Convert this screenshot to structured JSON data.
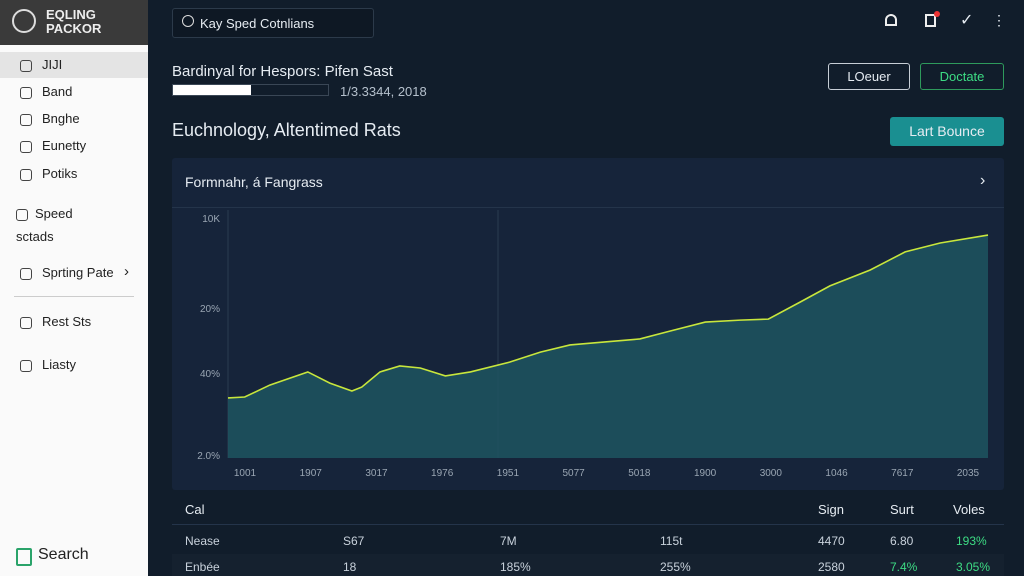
{
  "app": {
    "logo": [
      "EQLING",
      "PACKOR"
    ],
    "search": "Kay Sped Cotnlians"
  },
  "sidebar": {
    "items": [
      "JIJI",
      "Band",
      "Bnghe",
      "Eunetty",
      "Potiks",
      "Speed",
      "sctads",
      "Sprting Pate",
      "Rest Sts",
      "Liasty"
    ],
    "footer": "Search"
  },
  "header": {
    "title": "Bardinyal for Hespors: Pifen Sast",
    "progress": 50,
    "progress_text": "1/3.3344, 2018",
    "buttons": [
      "LOeuer",
      "Doctate"
    ]
  },
  "section": {
    "title": "Euchnology, Altentimed Rats",
    "button": "Lart Bounce"
  },
  "panel": {
    "title": "Formnahr, á Fangrass",
    "chart": {
      "type": "area",
      "color": "#c8e63c",
      "ytick_labels": [
        "10K",
        "20%",
        "40%",
        "2.0%"
      ],
      "xtick_labels": [
        "1001",
        "1907",
        "3017",
        "1976",
        "1951",
        "5077",
        "5018",
        "1900",
        "3000",
        "1046",
        "7617",
        "2035"
      ],
      "xlim": [
        0,
        100
      ],
      "ylim": [
        0,
        100
      ],
      "x": [
        0,
        2.2,
        5.5,
        10.5,
        13.4,
        16.3,
        17.6,
        20,
        22.6,
        25.3,
        28.6,
        31.9,
        37.1,
        41.1,
        45,
        49.6,
        54.2,
        58.2,
        62.8,
        67.4,
        71.1,
        75.3,
        79.2,
        84.5,
        89.1,
        93.7,
        100
      ],
      "values": [
        24.2,
        24.6,
        29.4,
        34.7,
        30.2,
        27,
        28.6,
        34.7,
        37.1,
        36.3,
        33.1,
        34.7,
        38.7,
        42.7,
        45.6,
        46.8,
        48,
        51.2,
        54.8,
        55.6,
        56,
        62.9,
        69.4,
        75.8,
        83.1,
        86.7,
        89.9
      ]
    }
  },
  "table": {
    "headers": [
      "Cal",
      "Sign",
      "Surt",
      "Voles"
    ],
    "rows": [
      [
        "Nease",
        "S67",
        "7M",
        "115t",
        "4470",
        "6.80",
        "193%"
      ],
      [
        "Enbée",
        "18",
        "185%",
        "255%",
        "2580",
        "7.4%",
        "3.05%"
      ]
    ]
  }
}
